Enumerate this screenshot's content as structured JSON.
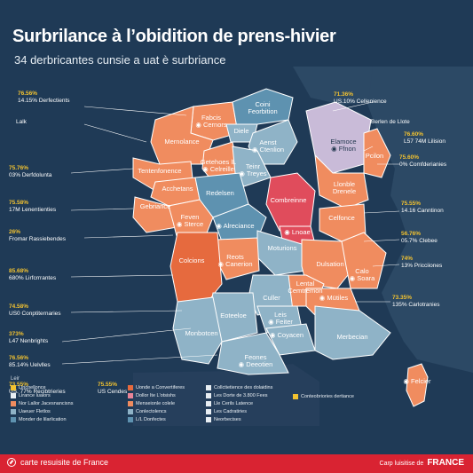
{
  "title": "Surbrilance à l’obidition de prens-hivier",
  "subtitle": "34 derbricantes cunsie a uat è surbriance",
  "colors": {
    "background": "#1f3a56",
    "sea_dark": "#263f5c",
    "land_neighbor": "#2c4965",
    "orange": "#f08c5f",
    "orange_dark": "#e66a3e",
    "blue_grey": "#8fb3c7",
    "blue_mid": "#5e92b0",
    "pink": "#e98498",
    "red": "#e04c5c",
    "lilac": "#c9bbd8",
    "accent_yellow": "#f2c230",
    "footer_red": "#d92332"
  },
  "regions": [
    {
      "label": "Fabcis\nCernors",
      "pin": true
    },
    {
      "label": "Coini\nFeorbition",
      "pin": false
    },
    {
      "label": "Diele",
      "pin": false
    },
    {
      "label": "Mernolance",
      "pin": false
    },
    {
      "label": "Aenst\nCtenlion",
      "pin": true
    },
    {
      "label": "Elamoce\nFfnon",
      "pin": true
    },
    {
      "label": "Pcilon",
      "pin": false
    },
    {
      "label": "Getehoes lL\nCelreille",
      "pin": true
    },
    {
      "label": "Teinr\nTreyes",
      "pin": true
    },
    {
      "label": "Tentenfonence",
      "pin": false
    },
    {
      "label": "Acchetans",
      "pin": false
    },
    {
      "label": "Redelsen",
      "pin": false
    },
    {
      "label": "Combreinne",
      "pin": false
    },
    {
      "label": "Llonble\nDrenele",
      "pin": false
    },
    {
      "label": "Gebriance",
      "pin": false
    },
    {
      "label": "Feven\nSterce",
      "pin": true
    },
    {
      "label": "Alreciance",
      "pin": true
    },
    {
      "label": "Lnoae",
      "pin": true
    },
    {
      "label": "Celfonce",
      "pin": false
    },
    {
      "label": "Moturions",
      "pin": false
    },
    {
      "label": "Reots\nCanerion",
      "pin": true
    },
    {
      "label": "Colcions",
      "pin": false
    },
    {
      "label": "Dulsation",
      "pin": false
    },
    {
      "label": "Calo\nSoara",
      "pin": true
    },
    {
      "label": "Lental\nCemtremon",
      "pin": false
    },
    {
      "label": "Culler",
      "pin": false
    },
    {
      "label": "Mütiles",
      "pin": true
    },
    {
      "label": "Eoteeloe",
      "pin": false
    },
    {
      "label": "Leis\nFeiter",
      "pin": true
    },
    {
      "label": "Coyacen",
      "pin": true
    },
    {
      "label": "Monbotcen",
      "pin": false
    },
    {
      "label": "Merbecian",
      "pin": false
    },
    {
      "label": "Feones\nDeeotien",
      "pin": true
    },
    {
      "label": "Felcier",
      "pin": true
    }
  ],
  "callouts_left": [
    {
      "pct": "",
      "text": "Lalk"
    },
    {
      "pct": "76.56%",
      "text": "14.15% Derfectients"
    },
    {
      "pct": "75.76%",
      "text": "03% Derfdolunta"
    },
    {
      "pct": "75.58%",
      "text": "17M Lenentienties"
    },
    {
      "pct": "26%",
      "text": "Fromar Rassiebendes"
    },
    {
      "pct": "85.68%",
      "text": "680% Lirfcrrrantes"
    },
    {
      "pct": "74.58%",
      "text": "US0 Conptiternaries"
    },
    {
      "pct": "373%",
      "text": "L47 Nenbrights"
    },
    {
      "pct": "76.56%",
      "text": "85.14% Uelvlles"
    },
    {
      "pct": "73.55%",
      "text": "US. 77% Recibtrieries"
    }
  ],
  "callouts_right": [
    {
      "pct": "71.36%",
      "text": "US.10% Cellenience"
    },
    {
      "pct": "",
      "text": "Berlen de Llote"
    },
    {
      "pct": "76.60%",
      "text": "L57 74M Lilision"
    },
    {
      "pct": "75.60%",
      "text": "0% Comfderianies"
    },
    {
      "pct": "75.55%",
      "text": "14.16 Canntinon"
    },
    {
      "pct": "56.76%",
      "text": "05.7% Clebee"
    },
    {
      "pct": "74%",
      "text": "13% Pricciiones"
    },
    {
      "pct": "73.35%",
      "text": "135% Carlotranies"
    }
  ],
  "callout_bottom_extra": {
    "pct": "75.55%",
    "text": "US Cendes"
  },
  "legend": {
    "heading": "Leir",
    "col1": [
      {
        "label": "Lincoellonce",
        "color": "#f2c230"
      },
      {
        "label": "Lirance lualors",
        "color": "#e8eef3"
      },
      {
        "label": "Nor Lallor Jacesnancisns",
        "color": "#f08c5f"
      },
      {
        "label": "Uaeuer Fletlos",
        "color": "#8fb3c7"
      },
      {
        "label": "Monder de lilarlication",
        "color": "#5e92b0"
      }
    ],
    "col2": [
      {
        "label": "Uonde a Convertiferes",
        "color": "#e66a3e"
      },
      {
        "label": "Dollor Ite L'otsishs",
        "color": "#e98498"
      },
      {
        "label": "Menseionle colele",
        "color": "#f08c5f"
      },
      {
        "label": "Conlectolencs",
        "color": "#8fb3c7"
      },
      {
        "label": "L/L Donfectes",
        "color": "#5e92b0"
      }
    ],
    "col3": [
      {
        "label": "Collctietience des dolaidins",
        "color": "#e8eef3"
      },
      {
        "label": "Les Dorte de 3.800 Fees",
        "color": "#e8eef3"
      },
      {
        "label": "Lle Cerils Latence",
        "color": "#e8eef3"
      },
      {
        "label": "Les Cadratiries",
        "color": "#e8eef3"
      },
      {
        "label": "Neorbecises",
        "color": "#e8eef3"
      }
    ],
    "col4": [
      {
        "label": "Conteobriories dertiance",
        "color": "#f2c230"
      }
    ]
  },
  "footer": {
    "left": "carte resuisite de France",
    "right_small": "Carp luisitise de",
    "right_bold": "FRANCE"
  }
}
